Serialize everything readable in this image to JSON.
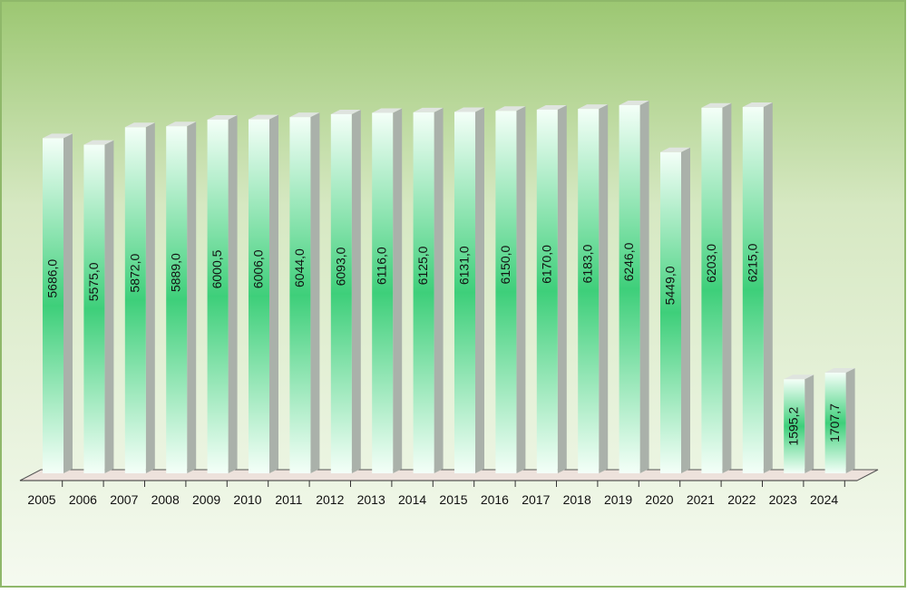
{
  "chart_data": {
    "type": "bar",
    "categories": [
      "2005",
      "2006",
      "2007",
      "2008",
      "2009",
      "2010",
      "2011",
      "2012",
      "2013",
      "2014",
      "2015",
      "2016",
      "2017",
      "2018",
      "2019",
      "2020",
      "2021",
      "2022",
      "2023",
      "2024"
    ],
    "values": [
      5686.0,
      5575.0,
      5872.0,
      5889.0,
      6000.5,
      6006.0,
      6044.0,
      6093.0,
      6116.0,
      6125.0,
      6131.0,
      6150.0,
      6170.0,
      6183.0,
      6246.0,
      5449.0,
      6203.0,
      6215.0,
      1595.2,
      1707.7
    ],
    "value_labels": [
      "5686,0",
      "5575,0",
      "5872,0",
      "5889,0",
      "6000,5",
      "6006,0",
      "6044,0",
      "6093,0",
      "6116,0",
      "6125,0",
      "6131,0",
      "6150,0",
      "6170,0",
      "6183,0",
      "6246,0",
      "5449,0",
      "6203,0",
      "6215,0",
      "1595,2",
      "1707,7"
    ],
    "color": "#3ecf7a"
  }
}
